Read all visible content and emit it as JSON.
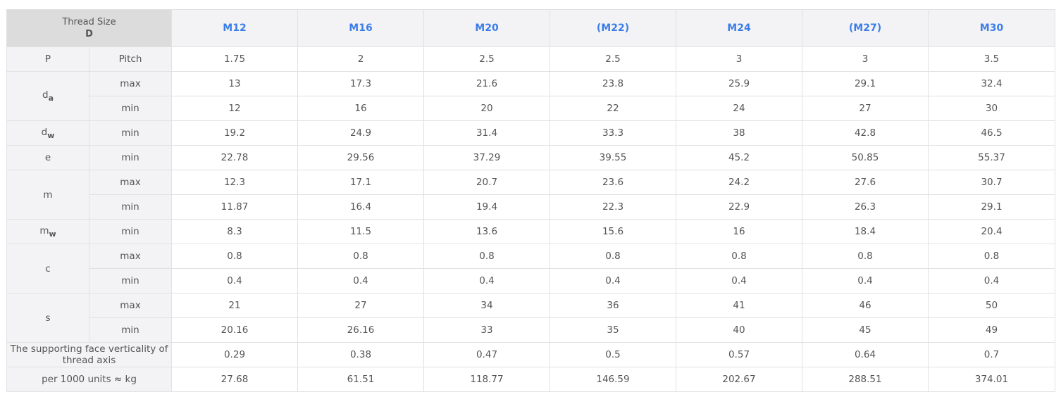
{
  "header": {
    "corner_line1": "Thread Size",
    "corner_line2": "D",
    "sizes": [
      "M12",
      "M16",
      "M20",
      "(M22)",
      "M24",
      "(M27)",
      "M30"
    ]
  },
  "rows": {
    "p": {
      "symbol": "P",
      "sub": "Pitch",
      "values": [
        "1.75",
        "2",
        "2.5",
        "2.5",
        "3",
        "3",
        "3.5"
      ]
    },
    "da_max": {
      "symbol": "d",
      "subscript": "a",
      "sub": "max",
      "values": [
        "13",
        "17.3",
        "21.6",
        "23.8",
        "25.9",
        "29.1",
        "32.4"
      ]
    },
    "da_min": {
      "sub": "min",
      "values": [
        "12",
        "16",
        "20",
        "22",
        "24",
        "27",
        "30"
      ]
    },
    "dw": {
      "symbol": "d",
      "subscript": "w",
      "sub": "min",
      "values": [
        "19.2",
        "24.9",
        "31.4",
        "33.3",
        "38",
        "42.8",
        "46.5"
      ]
    },
    "e": {
      "symbol": "e",
      "sub": "min",
      "values": [
        "22.78",
        "29.56",
        "37.29",
        "39.55",
        "45.2",
        "50.85",
        "55.37"
      ]
    },
    "m_max": {
      "symbol": "m",
      "sub": "max",
      "values": [
        "12.3",
        "17.1",
        "20.7",
        "23.6",
        "24.2",
        "27.6",
        "30.7"
      ]
    },
    "m_min": {
      "sub": "min",
      "values": [
        "11.87",
        "16.4",
        "19.4",
        "22.3",
        "22.9",
        "26.3",
        "29.1"
      ]
    },
    "mw": {
      "symbol": "m",
      "subscript": "w",
      "sub": "min",
      "values": [
        "8.3",
        "11.5",
        "13.6",
        "15.6",
        "16",
        "18.4",
        "20.4"
      ]
    },
    "c_max": {
      "symbol": "c",
      "sub": "max",
      "values": [
        "0.8",
        "0.8",
        "0.8",
        "0.8",
        "0.8",
        "0.8",
        "0.8"
      ]
    },
    "c_min": {
      "sub": "min",
      "values": [
        "0.4",
        "0.4",
        "0.4",
        "0.4",
        "0.4",
        "0.4",
        "0.4"
      ]
    },
    "s_max": {
      "symbol": "s",
      "sub": "max",
      "values": [
        "21",
        "27",
        "34",
        "36",
        "41",
        "46",
        "50"
      ]
    },
    "s_min": {
      "sub": "min",
      "values": [
        "20.16",
        "26.16",
        "33",
        "35",
        "40",
        "45",
        "49"
      ]
    },
    "verticality": {
      "label": "The supporting face verticality of thread axis",
      "values": [
        "0.29",
        "0.38",
        "0.47",
        "0.5",
        "0.57",
        "0.64",
        "0.7"
      ]
    },
    "weight": {
      "label": "per 1000 units ≈ kg",
      "values": [
        "27.68",
        "61.51",
        "118.77",
        "146.59",
        "202.67",
        "288.51",
        "374.01"
      ]
    }
  }
}
